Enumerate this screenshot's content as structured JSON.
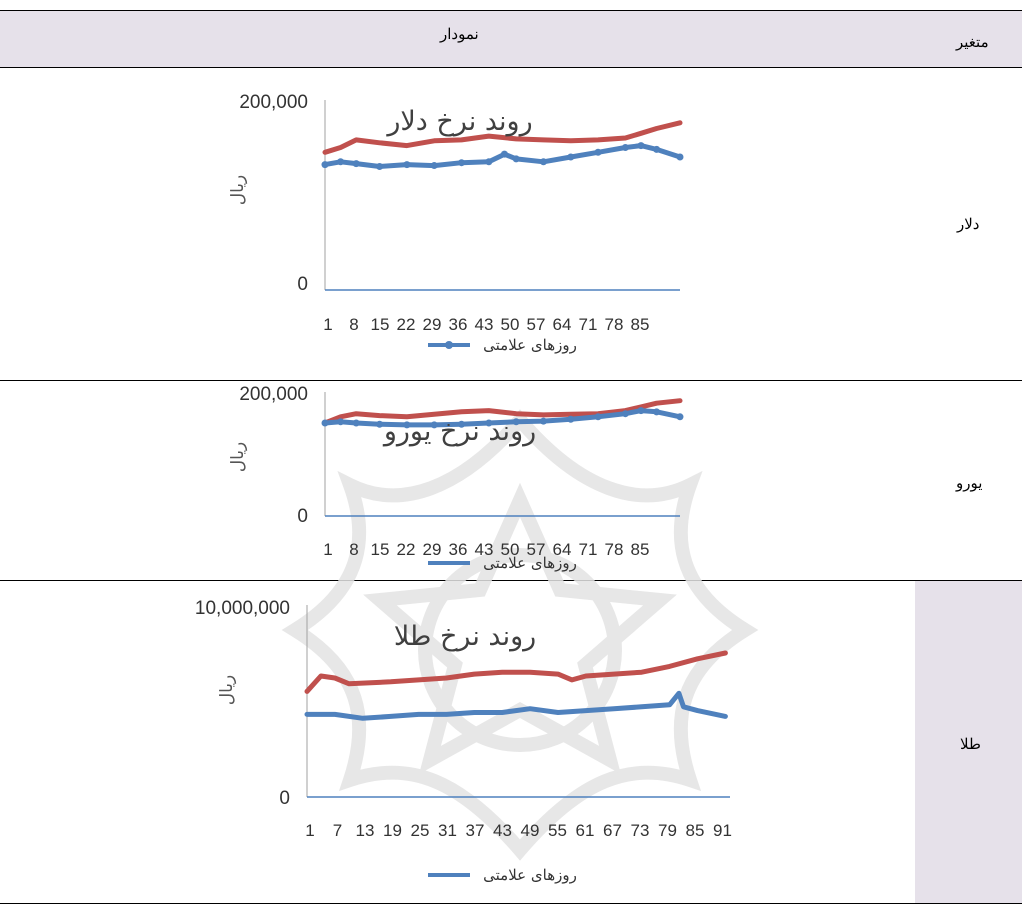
{
  "header": {
    "col_chart": "نمودار",
    "col_variable": "متغیر"
  },
  "rows": [
    {
      "label": "دلار"
    },
    {
      "label": "یورو"
    },
    {
      "label": "طلا"
    }
  ],
  "colors": {
    "header_bg": "#e6e1ea",
    "series_red": "#c0504d",
    "series_blue": "#4f81bd"
  },
  "chart_data": [
    {
      "type": "line",
      "title": "روند نرخ دلار",
      "ylabel": "ریال",
      "xlabel": "روزهای علامتی",
      "y_ticks": [
        "200,000",
        "0"
      ],
      "ylim": [
        0,
        200000
      ],
      "x_ticks": [
        "1",
        "8",
        "15",
        "22",
        "29",
        "36",
        "43",
        "50",
        "57",
        "64",
        "71",
        "78",
        "85"
      ],
      "x_range": [
        1,
        92
      ],
      "series": [
        {
          "values": [
            [
              1,
              145000
            ],
            [
              5,
              150000
            ],
            [
              9,
              158000
            ],
            [
              15,
              155000
            ],
            [
              22,
              152000
            ],
            [
              29,
              157000
            ],
            [
              36,
              158000
            ],
            [
              43,
              162000
            ],
            [
              50,
              159000
            ],
            [
              57,
              158000
            ],
            [
              64,
              157000
            ],
            [
              71,
              158000
            ],
            [
              78,
              160000
            ],
            [
              82,
              165000
            ],
            [
              86,
              170000
            ],
            [
              92,
              176000
            ]
          ]
        },
        {
          "markers": true,
          "values": [
            [
              1,
              132000
            ],
            [
              5,
              135000
            ],
            [
              9,
              133000
            ],
            [
              15,
              130000
            ],
            [
              22,
              132000
            ],
            [
              29,
              131000
            ],
            [
              36,
              134000
            ],
            [
              43,
              135000
            ],
            [
              47,
              143000
            ],
            [
              50,
              138000
            ],
            [
              57,
              135000
            ],
            [
              64,
              140000
            ],
            [
              71,
              145000
            ],
            [
              78,
              150000
            ],
            [
              82,
              152000
            ],
            [
              86,
              148000
            ],
            [
              92,
              140000
            ]
          ]
        }
      ]
    },
    {
      "type": "line",
      "title": "روند نرخ یورو",
      "ylabel": "ریال",
      "xlabel": "روزهای علامتی",
      "y_ticks": [
        "200,000",
        "0"
      ],
      "ylim": [
        0,
        200000
      ],
      "x_ticks": [
        "1",
        "8",
        "15",
        "22",
        "29",
        "36",
        "43",
        "50",
        "57",
        "64",
        "71",
        "78",
        "85"
      ],
      "x_range": [
        1,
        92
      ],
      "series": [
        {
          "values": [
            [
              1,
              150000
            ],
            [
              5,
              160000
            ],
            [
              9,
              165000
            ],
            [
              15,
              162000
            ],
            [
              22,
              160000
            ],
            [
              29,
              164000
            ],
            [
              36,
              168000
            ],
            [
              43,
              170000
            ],
            [
              50,
              165000
            ],
            [
              57,
              163000
            ],
            [
              64,
              164000
            ],
            [
              71,
              165000
            ],
            [
              78,
              170000
            ],
            [
              82,
              176000
            ],
            [
              86,
              182000
            ],
            [
              92,
              186000
            ]
          ]
        },
        {
          "markers": true,
          "values": [
            [
              1,
              150000
            ],
            [
              5,
              152000
            ],
            [
              9,
              150000
            ],
            [
              15,
              148000
            ],
            [
              22,
              147000
            ],
            [
              29,
              147000
            ],
            [
              36,
              148000
            ],
            [
              43,
              150000
            ],
            [
              50,
              152000
            ],
            [
              57,
              153000
            ],
            [
              64,
              156000
            ],
            [
              71,
              160000
            ],
            [
              78,
              165000
            ],
            [
              82,
              170000
            ],
            [
              86,
              168000
            ],
            [
              92,
              160000
            ]
          ]
        }
      ]
    },
    {
      "type": "line",
      "title": "روند نرخ طلا",
      "ylabel": "ریال",
      "xlabel": "روزهای علامتی",
      "y_ticks": [
        "10,000,000",
        "0"
      ],
      "ylim": [
        0,
        10000000
      ],
      "x_ticks": [
        "1",
        "7",
        "13",
        "19",
        "25",
        "31",
        "37",
        "43",
        "49",
        "55",
        "61",
        "67",
        "73",
        "79",
        "85",
        "91"
      ],
      "x_range": [
        1,
        92
      ],
      "series": [
        {
          "values": [
            [
              1,
              5500000
            ],
            [
              4,
              6300000
            ],
            [
              7,
              6200000
            ],
            [
              10,
              5900000
            ],
            [
              19,
              6000000
            ],
            [
              25,
              6100000
            ],
            [
              31,
              6200000
            ],
            [
              37,
              6400000
            ],
            [
              43,
              6500000
            ],
            [
              49,
              6500000
            ],
            [
              55,
              6400000
            ],
            [
              58,
              6100000
            ],
            [
              61,
              6300000
            ],
            [
              67,
              6400000
            ],
            [
              73,
              6500000
            ],
            [
              79,
              6800000
            ],
            [
              85,
              7200000
            ],
            [
              91,
              7500000
            ]
          ]
        },
        {
          "values": [
            [
              1,
              4300000
            ],
            [
              7,
              4300000
            ],
            [
              13,
              4100000
            ],
            [
              19,
              4200000
            ],
            [
              25,
              4300000
            ],
            [
              31,
              4300000
            ],
            [
              37,
              4400000
            ],
            [
              43,
              4400000
            ],
            [
              49,
              4600000
            ],
            [
              55,
              4400000
            ],
            [
              61,
              4500000
            ],
            [
              67,
              4600000
            ],
            [
              73,
              4700000
            ],
            [
              79,
              4800000
            ],
            [
              81,
              5400000
            ],
            [
              82,
              4700000
            ],
            [
              85,
              4500000
            ],
            [
              91,
              4200000
            ]
          ]
        }
      ]
    }
  ]
}
